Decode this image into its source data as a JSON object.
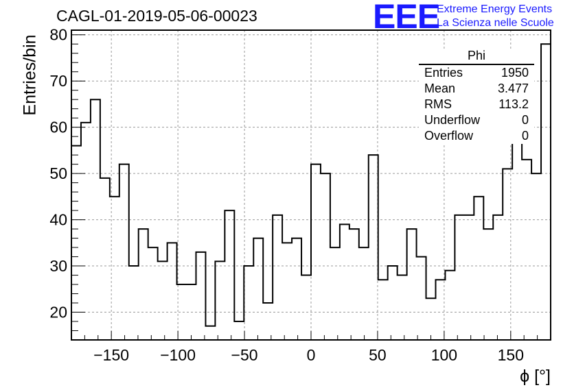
{
  "title": "CAGL-01-2019-05-06-00023",
  "logo": {
    "mark": "EEE",
    "line1": "Extreme Energy Events",
    "line2": "La Scienza nelle Scuole",
    "color": "#1a1aff"
  },
  "stats": {
    "name": "Phi",
    "rows": [
      {
        "label": "Entries",
        "value": "1950"
      },
      {
        "label": "Mean",
        "value": "3.477"
      },
      {
        "label": "RMS",
        "value": "113.2"
      },
      {
        "label": "Underflow",
        "value": "0"
      },
      {
        "label": "Overflow",
        "value": "0"
      }
    ]
  },
  "chart_data": {
    "type": "bar",
    "style": "step-histogram",
    "title": "CAGL-01-2019-05-06-00023",
    "xlabel": "ϕ [°]",
    "ylabel": "Entries/bin",
    "xlim": [
      -180,
      180
    ],
    "ylim": [
      14,
      81
    ],
    "bin_width": 7.2,
    "grid": true,
    "x_ticks": [
      -150,
      -100,
      -50,
      0,
      50,
      100,
      150
    ],
    "y_ticks": [
      20,
      30,
      40,
      50,
      60,
      70,
      80
    ],
    "values": [
      56,
      61,
      66,
      49,
      45,
      52,
      30,
      38,
      34,
      31,
      35,
      26,
      26,
      33,
      17,
      31,
      42,
      18,
      30,
      36,
      22,
      41,
      35,
      36,
      28,
      52,
      50,
      34,
      39,
      38,
      34,
      54,
      27,
      30,
      28,
      38,
      32,
      23,
      27,
      29,
      41,
      41,
      45,
      38,
      41,
      51,
      59,
      53,
      50,
      78
    ]
  }
}
